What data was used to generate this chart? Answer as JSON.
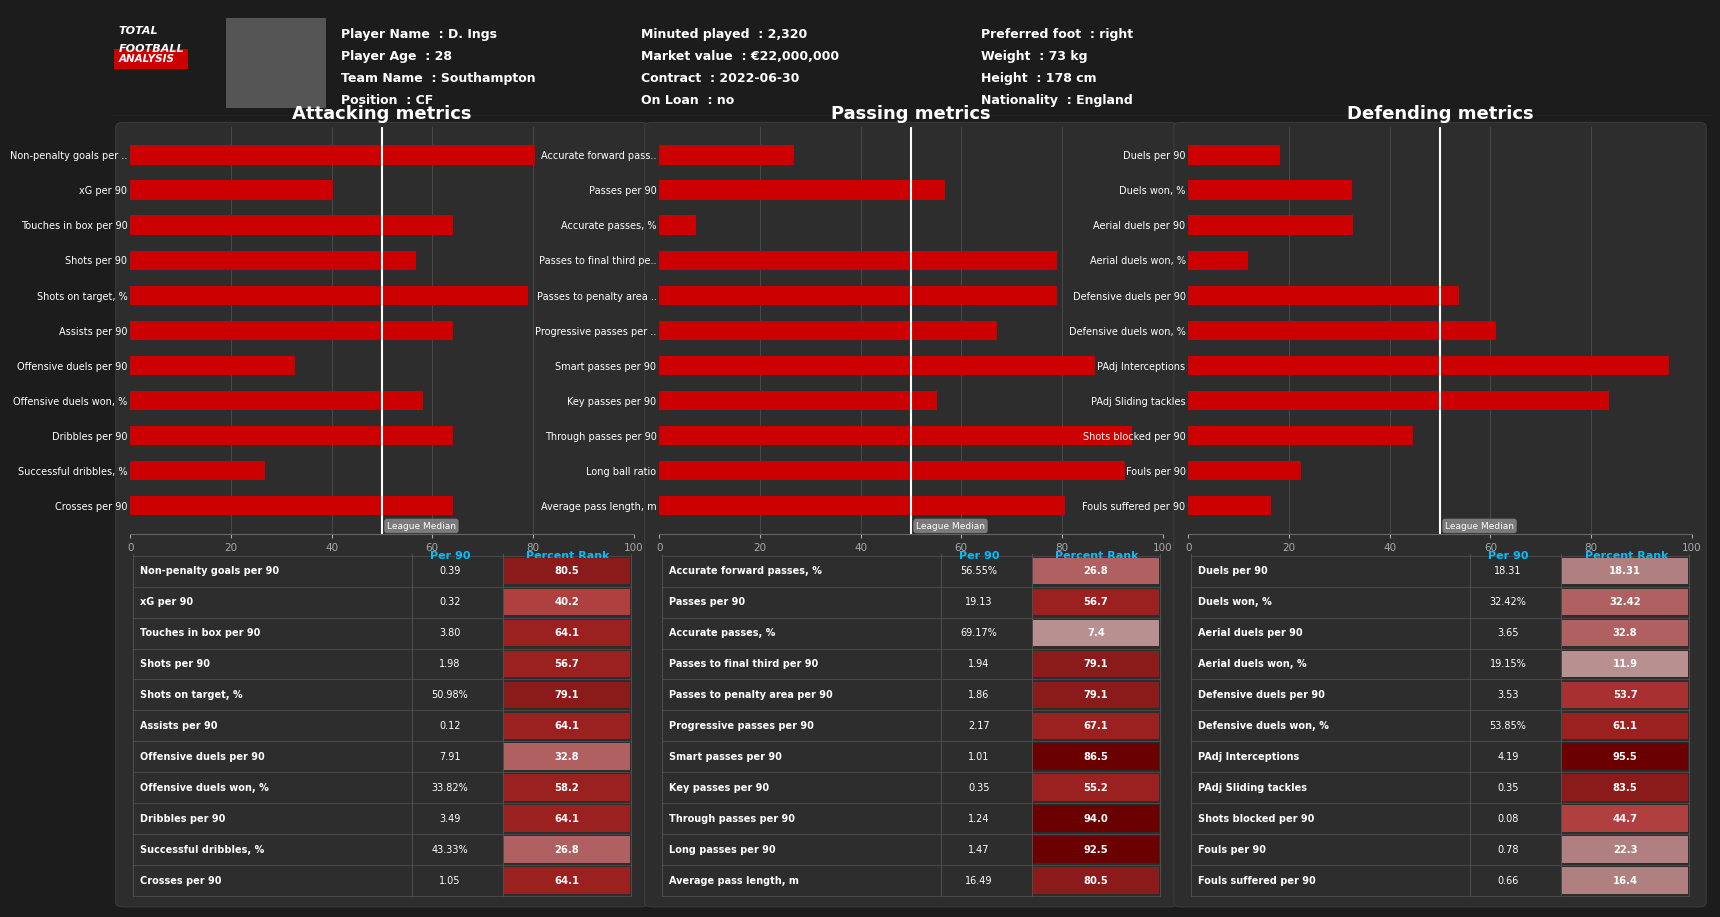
{
  "bg_color": "#1c1c1c",
  "panel_color": "#2d2d2d",
  "bar_color": "#cc0000",
  "text_color": "#ffffff",
  "header_bg": "#0a0a0a",
  "player_info_left": [
    [
      "Player Name",
      "D. Ings"
    ],
    [
      "Player Age",
      "28"
    ],
    [
      "Team Name",
      "Southampton"
    ],
    [
      "Position",
      "CF"
    ]
  ],
  "player_info_mid": [
    [
      "Minuted played",
      "2,320"
    ],
    [
      "Market value",
      "€22,000,000"
    ],
    [
      "Contract",
      "2022-06-30"
    ],
    [
      "On Loan",
      "no"
    ]
  ],
  "player_info_right": [
    [
      "Preferred foot",
      "right"
    ],
    [
      "Weight",
      "73 kg"
    ],
    [
      "Height",
      "178 cm"
    ],
    [
      "Nationality",
      "England"
    ]
  ],
  "attacking": {
    "title": "Attacking metrics",
    "labels": [
      "Non-penalty goals per ..",
      "xG per 90",
      "Touches in box per 90",
      "Shots per 90",
      "Shots on target, %",
      "Assists per 90",
      "Offensive duels per 90",
      "Offensive duels won, %",
      "Dribbles per 90",
      "Successful dribbles, %",
      "Crosses per 90"
    ],
    "values": [
      80.5,
      40.2,
      64.1,
      56.7,
      79.1,
      64.1,
      32.8,
      58.2,
      64.1,
      26.8,
      64.1
    ],
    "league_median": 50,
    "table_labels": [
      "Non-penalty goals per 90",
      "xG per 90",
      "Touches in box per 90",
      "Shots per 90",
      "Shots on target, %",
      "Assists per 90",
      "Offensive duels per 90",
      "Offensive duels won, %",
      "Dribbles per 90",
      "Successful dribbles, %",
      "Crosses per 90"
    ],
    "per90": [
      "0.39",
      "0.32",
      "3.80",
      "1.98",
      "50.98%",
      "0.12",
      "7.91",
      "33.82%",
      "3.49",
      "43.33%",
      "1.05"
    ],
    "percent_rank": [
      80.5,
      40.2,
      64.1,
      56.7,
      79.1,
      64.1,
      32.8,
      58.2,
      64.1,
      26.8,
      64.1
    ]
  },
  "passing": {
    "title": "Passing metrics",
    "labels": [
      "Accurate forward pass..",
      "Passes per 90",
      "Accurate passes, %",
      "Passes to final third pe..",
      "Passes to penalty area ..",
      "Progressive passes per ..",
      "Smart passes per 90",
      "Key passes per 90",
      "Through passes per 90",
      "Long ball ratio",
      "Average pass length, m"
    ],
    "values": [
      26.8,
      56.7,
      7.4,
      79.1,
      79.1,
      67.1,
      86.5,
      55.2,
      94.0,
      92.5,
      80.5
    ],
    "league_median": 50,
    "table_labels": [
      "Accurate forward passes, %",
      "Passes per 90",
      "Accurate passes, %",
      "Passes to final third per 90",
      "Passes to penalty area per 90",
      "Progressive passes per 90",
      "Smart passes per 90",
      "Key passes per 90",
      "Through passes per 90",
      "Long passes per 90",
      "Average pass length, m"
    ],
    "per90": [
      "56.55%",
      "19.13",
      "69.17%",
      "1.94",
      "1.86",
      "2.17",
      "1.01",
      "0.35",
      "1.24",
      "1.47",
      "16.49"
    ],
    "percent_rank": [
      26.8,
      56.7,
      7.4,
      79.1,
      79.1,
      67.1,
      86.5,
      55.2,
      94.0,
      92.5,
      80.5
    ]
  },
  "defending": {
    "title": "Defending metrics",
    "labels": [
      "Duels per 90",
      "Duels won, %",
      "Aerial duels per 90",
      "Aerial duels won, %",
      "Defensive duels per 90",
      "Defensive duels won, %",
      "PAdj Interceptions",
      "PAdj Sliding tackles",
      "Shots blocked per 90",
      "Fouls per 90",
      "Fouls suffered per 90"
    ],
    "values": [
      18.31,
      32.42,
      32.8,
      11.9,
      53.7,
      61.1,
      95.5,
      83.5,
      44.7,
      22.3,
      16.4
    ],
    "league_median": 50,
    "table_labels": [
      "Duels per 90",
      "Duels won, %",
      "Aerial duels per 90",
      "Aerial duels won, %",
      "Defensive duels per 90",
      "Defensive duels won, %",
      "PAdj Interceptions",
      "PAdj Sliding tackles",
      "Shots blocked per 90",
      "Fouls per 90",
      "Fouls suffered per 90"
    ],
    "per90": [
      "18.31",
      "32.42%",
      "3.65",
      "19.15%",
      "3.53",
      "53.85%",
      "4.19",
      "0.35",
      "0.08",
      "0.78",
      "0.66"
    ],
    "percent_rank": [
      18.31,
      32.42,
      32.8,
      11.9,
      53.7,
      61.1,
      95.5,
      83.5,
      44.7,
      22.3,
      16.4
    ]
  }
}
